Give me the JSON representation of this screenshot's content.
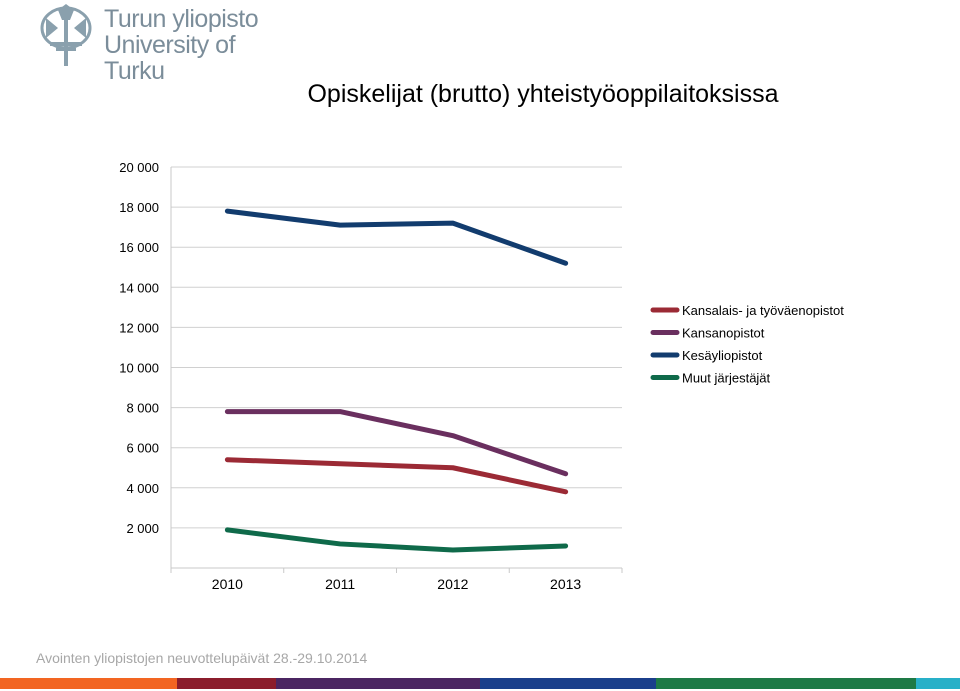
{
  "header": {
    "logo_line1": "Turun yliopisto",
    "logo_line2": "University of Turku",
    "logo_icon": "torch-emblem-icon"
  },
  "chart_data": {
    "type": "line",
    "title": "Opiskelijat (brutto) yhteistyöoppilaitoksissa",
    "categories": [
      "2010",
      "2011",
      "2012",
      "2013"
    ],
    "y_ticks": [
      "20 000",
      "18 000",
      "16 000",
      "14 000",
      "12 000",
      "10 000",
      "8 000",
      "6 000",
      "4 000",
      "2 000"
    ],
    "ylim": [
      0,
      20000
    ],
    "xlabel": "",
    "ylabel": "",
    "legend_position": "right",
    "grid": true,
    "series": [
      {
        "name": "Kansalais- ja työväenopistot",
        "color": "#9b2a35",
        "values": [
          5400,
          5200,
          5000,
          3800
        ]
      },
      {
        "name": "Kansanopistot",
        "color": "#6a2f5f",
        "values": [
          7800,
          7800,
          6600,
          4700
        ]
      },
      {
        "name": "Kesäyliopistot",
        "color": "#123c6e",
        "values": [
          17800,
          17100,
          17200,
          15200
        ]
      },
      {
        "name": "Muut järjestäjät",
        "color": "#0f6a4a",
        "values": [
          1900,
          1200,
          900,
          1100
        ]
      }
    ]
  },
  "footer": {
    "text": "Avointen yliopistojen neuvottelupäivät 28.-29.10.2014"
  },
  "bottom_bar_colors": [
    "#f26522",
    "#8b1d2c",
    "#4b2561",
    "#1b3f8b",
    "#1e7a46",
    "#28b0c8"
  ]
}
